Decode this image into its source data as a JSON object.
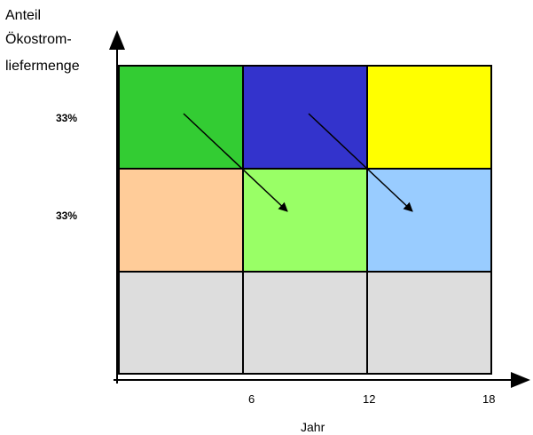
{
  "y_axis_label": [
    "Anteil",
    "Ökostrom-",
    "liefermenge"
  ],
  "x_axis_label": "Jahr",
  "row_labels": [
    "33%",
    "33%"
  ],
  "x_ticks": [
    "6",
    "12",
    "18"
  ],
  "grid": {
    "rows": [
      [
        "#33cc33",
        "#3333cc",
        "#ffff00"
      ],
      [
        "#ffcc99",
        "#99ff66",
        "#99ccff"
      ],
      [
        "#dddddd",
        "#dddddd",
        "#dddddd"
      ]
    ],
    "border_color": "#000000"
  },
  "arrows": [
    {
      "from": "row1-col1",
      "to": "row2-col2"
    },
    {
      "from": "row1-col2",
      "to": "row2-col3"
    }
  ]
}
